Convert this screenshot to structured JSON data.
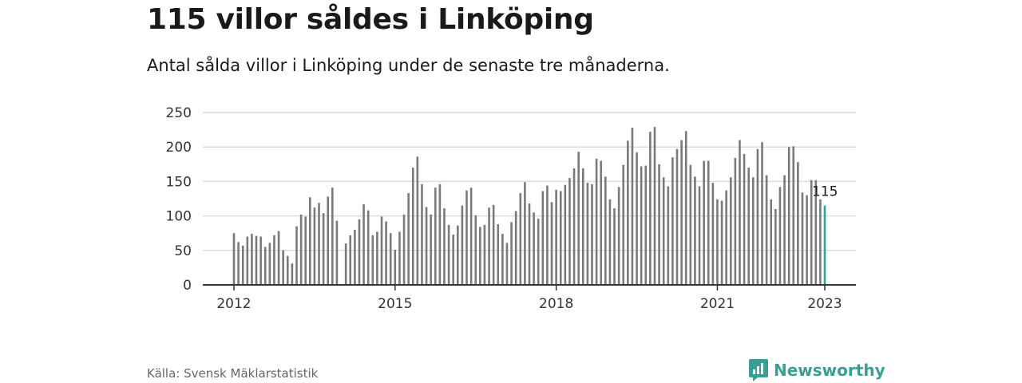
{
  "header": {
    "title": "115 villor såldes i Linköping",
    "subtitle": "Antal sålda villor i Linköping under de senaste tre månaderna."
  },
  "footer": {
    "source": "Källa: Svensk Mäklarstatistik",
    "brand": "Newsworthy",
    "brand_icon": "newsworthy-logo-icon",
    "brand_color": "#3a9e94"
  },
  "chart_data": {
    "type": "bar",
    "x_start": "2012-01",
    "x_ticks": [
      "2012",
      "2015",
      "2018",
      "2021",
      "2023"
    ],
    "y_ticks": [
      0,
      50,
      100,
      150,
      200,
      250
    ],
    "ylim": [
      0,
      250
    ],
    "grid": true,
    "bar_color": "#7a7a7a",
    "highlight_color": "#2ea39a",
    "highlight_label": "115",
    "values": [
      75,
      62,
      57,
      70,
      74,
      71,
      70,
      55,
      61,
      72,
      78,
      50,
      42,
      31,
      85,
      102,
      99,
      127,
      112,
      119,
      104,
      128,
      141,
      93,
      0,
      60,
      72,
      80,
      95,
      117,
      108,
      72,
      77,
      99,
      92,
      75,
      51,
      77,
      102,
      133,
      170,
      186,
      146,
      113,
      102,
      141,
      146,
      111,
      87,
      73,
      86,
      115,
      137,
      141,
      101,
      84,
      87,
      112,
      116,
      88,
      74,
      61,
      91,
      107,
      133,
      149,
      118,
      105,
      96,
      136,
      144,
      120,
      138,
      136,
      145,
      155,
      169,
      193,
      169,
      148,
      146,
      183,
      180,
      157,
      124,
      111,
      142,
      174,
      209,
      228,
      192,
      172,
      173,
      222,
      229,
      175,
      156,
      143,
      185,
      197,
      210,
      223,
      174,
      157,
      143,
      180,
      180,
      148,
      124,
      122,
      137,
      156,
      184,
      210,
      190,
      170,
      156,
      197,
      207,
      159,
      124,
      110,
      142,
      159,
      200,
      201,
      178,
      134,
      130,
      152,
      152,
      124,
      115
    ]
  }
}
